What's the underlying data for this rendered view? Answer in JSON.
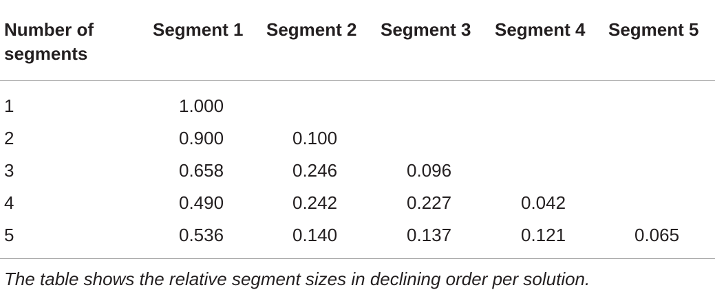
{
  "table": {
    "headers": [
      "Number of segments",
      "Segment 1",
      "Segment 2",
      "Segment 3",
      "Segment 4",
      "Segment 5"
    ],
    "rows": [
      [
        "1",
        "1.000",
        "",
        "",
        "",
        ""
      ],
      [
        "2",
        "0.900",
        "0.100",
        "",
        "",
        ""
      ],
      [
        "3",
        "0.658",
        "0.246",
        "0.096",
        "",
        ""
      ],
      [
        "4",
        "0.490",
        "0.242",
        "0.227",
        "0.042",
        ""
      ],
      [
        "5",
        "0.536",
        "0.140",
        "0.137",
        "0.121",
        "0.065"
      ]
    ]
  },
  "caption": "The table shows the relative segment sizes in declining order per solution."
}
